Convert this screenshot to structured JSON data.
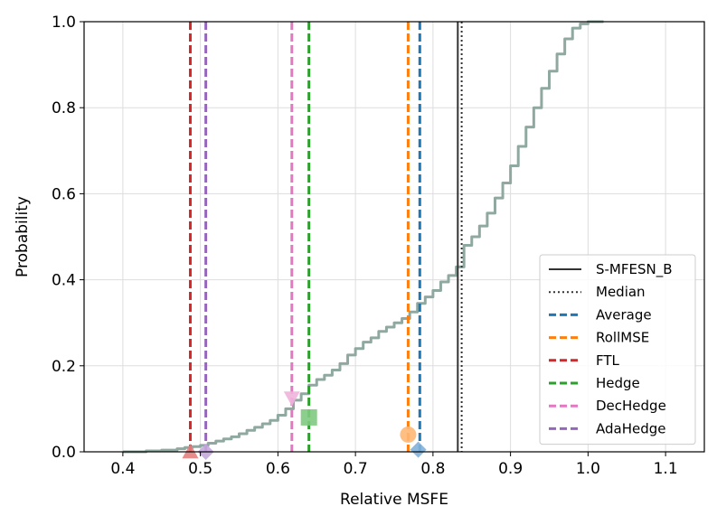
{
  "chart_data": {
    "type": "line",
    "xlabel": "Relative MSFE",
    "ylabel": "Probability",
    "xlim": [
      0.35,
      1.15
    ],
    "ylim": [
      0.0,
      1.0
    ],
    "xticks": [
      "0.4",
      "0.5",
      "0.6",
      "0.7",
      "0.8",
      "0.9",
      "1.0",
      "1.1"
    ],
    "yticks": [
      "0.0",
      "0.2",
      "0.4",
      "0.6",
      "0.8",
      "1.0"
    ],
    "grid": true,
    "legend_position": "lower-right",
    "cdf": {
      "color": "#8fa8a0",
      "x": [
        0.4,
        0.43,
        0.45,
        0.47,
        0.48,
        0.49,
        0.5,
        0.51,
        0.52,
        0.53,
        0.54,
        0.55,
        0.56,
        0.57,
        0.58,
        0.59,
        0.6,
        0.61,
        0.62,
        0.63,
        0.64,
        0.65,
        0.66,
        0.67,
        0.68,
        0.69,
        0.7,
        0.71,
        0.72,
        0.73,
        0.74,
        0.75,
        0.76,
        0.77,
        0.78,
        0.79,
        0.8,
        0.81,
        0.82,
        0.83,
        0.84,
        0.85,
        0.86,
        0.87,
        0.88,
        0.89,
        0.9,
        0.91,
        0.92,
        0.93,
        0.94,
        0.95,
        0.96,
        0.97,
        0.98,
        0.99,
        1.0,
        1.02
      ],
      "y": [
        0.0,
        0.002,
        0.004,
        0.007,
        0.01,
        0.012,
        0.015,
        0.02,
        0.025,
        0.03,
        0.035,
        0.042,
        0.05,
        0.057,
        0.065,
        0.073,
        0.085,
        0.1,
        0.12,
        0.135,
        0.155,
        0.168,
        0.178,
        0.19,
        0.205,
        0.225,
        0.24,
        0.255,
        0.265,
        0.28,
        0.29,
        0.3,
        0.31,
        0.325,
        0.345,
        0.36,
        0.375,
        0.395,
        0.41,
        0.43,
        0.48,
        0.5,
        0.525,
        0.555,
        0.59,
        0.625,
        0.665,
        0.71,
        0.755,
        0.8,
        0.845,
        0.885,
        0.925,
        0.96,
        0.985,
        0.995,
        1.0,
        1.0
      ]
    },
    "vlines": [
      {
        "name": "S-MFESN_B",
        "x": 0.832,
        "color": "#333333",
        "style": "solid"
      },
      {
        "name": "Median",
        "x": 0.837,
        "color": "#333333",
        "style": "dotted"
      },
      {
        "name": "Average",
        "x": 0.783,
        "color": "#1f77b4",
        "style": "dashed"
      },
      {
        "name": "RollMSE",
        "x": 0.768,
        "color": "#ff7f0e",
        "style": "dashed"
      },
      {
        "name": "FTL",
        "x": 0.487,
        "color": "#d62728",
        "style": "dashed"
      },
      {
        "name": "Hedge",
        "x": 0.64,
        "color": "#2ca02c",
        "style": "dashed"
      },
      {
        "name": "DecHedge",
        "x": 0.618,
        "color": "#e377c2",
        "style": "dashed"
      },
      {
        "name": "AdaHedge",
        "x": 0.507,
        "color": "#9467bd",
        "style": "dashed"
      }
    ],
    "markers": [
      {
        "name": "Average",
        "shape": "diamond",
        "x": 0.781,
        "y": 0.005,
        "color": "#7fb1d9"
      },
      {
        "name": "RollMSE",
        "shape": "circle",
        "x": 0.768,
        "y": 0.04,
        "color": "#ffb774"
      },
      {
        "name": "FTL",
        "shape": "triangle-up",
        "x": 0.487,
        "y": 0.0,
        "color": "#e57e7e"
      },
      {
        "name": "Hedge",
        "shape": "square",
        "x": 0.64,
        "y": 0.08,
        "color": "#7fc97f"
      },
      {
        "name": "DecHedge",
        "shape": "triangle-down",
        "x": 0.618,
        "y": 0.125,
        "color": "#f0b2dc"
      },
      {
        "name": "AdaHedge",
        "shape": "diamond",
        "x": 0.507,
        "y": 0.0,
        "color": "#c4a8dc"
      }
    ],
    "legend": [
      {
        "label": "S-MFESN_B",
        "color": "#333333",
        "style": "solid"
      },
      {
        "label": "Median",
        "color": "#333333",
        "style": "dotted"
      },
      {
        "label": "Average",
        "color": "#1f77b4",
        "style": "dashed"
      },
      {
        "label": "RollMSE",
        "color": "#ff7f0e",
        "style": "dashed"
      },
      {
        "label": "FTL",
        "color": "#d62728",
        "style": "dashed"
      },
      {
        "label": "Hedge",
        "color": "#2ca02c",
        "style": "dashed"
      },
      {
        "label": "DecHedge",
        "color": "#e377c2",
        "style": "dashed"
      },
      {
        "label": "AdaHedge",
        "color": "#9467bd",
        "style": "dashed"
      }
    ]
  }
}
